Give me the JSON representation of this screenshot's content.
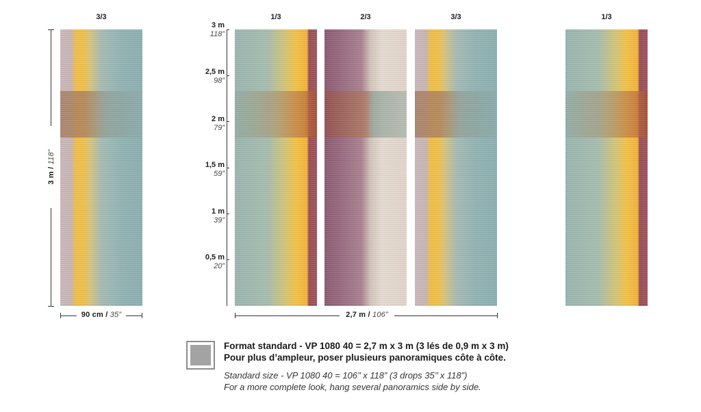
{
  "panels": [
    {
      "label": "3/3",
      "variant": "3"
    },
    {
      "label": "1/3",
      "variant": "1"
    },
    {
      "label": "2/3",
      "variant": "2"
    },
    {
      "label": "3/3",
      "variant": "3"
    },
    {
      "label": "1/3",
      "variant": "1"
    }
  ],
  "single_height": {
    "metric": "3 m",
    "imperial": "118”",
    "separator": " / "
  },
  "single_width": {
    "metric": "90 cm",
    "imperial": "35”",
    "separator": " / "
  },
  "total_width": {
    "metric": "2,7 m",
    "imperial": "106”",
    "separator": " / "
  },
  "scale": [
    {
      "metric": "3 m",
      "imperial": "118”"
    },
    {
      "metric": "2,5 m",
      "imperial": "98”"
    },
    {
      "metric": "2 m",
      "imperial": "79”"
    },
    {
      "metric": "1,5 m",
      "imperial": "59”"
    },
    {
      "metric": "1 m",
      "imperial": "39”"
    },
    {
      "metric": "0,5 m",
      "imperial": "20”"
    }
  ],
  "caption": {
    "fr_line1": "Format standard - VP 1080 40 = 2,7 m x 3 m (3 lés de 0,9 m x 3 m)",
    "fr_line2": "Pour plus d’ampleur, poser plusieurs panoramiques côte à côte.",
    "en_line1": "Standard size - VP 1080 40 = 106’’ x 118” (3 drops 35’’ x 118”)",
    "en_line2": "For a more complete look, hang several panoramics side by side."
  },
  "colors": {
    "yellow": "#f4c24a",
    "teal": "#93b5b5",
    "plum": "#8e5c72",
    "rust": "#b06a3e",
    "cream": "#e7ddd3",
    "swatch_gray": "#a3a3a3"
  }
}
